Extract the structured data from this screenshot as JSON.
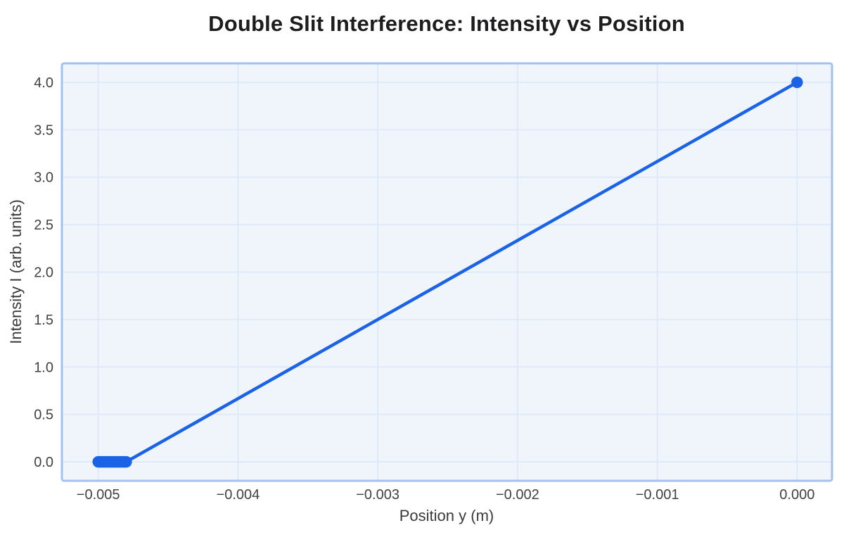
{
  "chart_data": {
    "type": "line",
    "title": "Double Slit Interference: Intensity vs Position",
    "xlabel": "Position y (m)",
    "ylabel": "Intensity I (arb. units)",
    "xlim": [
      -0.00526,
      0.00025
    ],
    "ylim": [
      -0.2,
      4.2
    ],
    "grid": true,
    "legend": "none",
    "xticks": {
      "values": [
        -0.005,
        -0.004,
        -0.003,
        -0.002,
        -0.001,
        0.0
      ],
      "labels": [
        "−0.005",
        "−0.004",
        "−0.003",
        "−0.002",
        "−0.001",
        "0.000"
      ]
    },
    "yticks": {
      "values": [
        0.0,
        0.5,
        1.0,
        1.5,
        2.0,
        2.5,
        3.0,
        3.5,
        4.0
      ],
      "labels": [
        "0.0",
        "0.5",
        "1.0",
        "1.5",
        "2.0",
        "2.5",
        "3.0",
        "3.5",
        "4.0"
      ]
    },
    "series": [
      {
        "name": "intensity",
        "x": [
          -0.005,
          -0.00499,
          -0.00498,
          -0.00497,
          -0.00496,
          -0.00495,
          -0.00494,
          -0.00493,
          -0.00492,
          -0.00491,
          -0.0049,
          -0.00489,
          -0.00488,
          -0.00487,
          -0.00486,
          -0.00485,
          -0.00484,
          -0.00483,
          -0.00482,
          -0.00481,
          -0.0048,
          0.0
        ],
        "y": [
          0.0,
          0.0,
          0.0,
          0.0,
          0.0,
          0.0,
          0.0,
          0.0,
          0.0,
          0.0,
          0.0,
          0.0,
          0.0,
          0.0,
          0.0,
          0.0,
          0.0,
          0.0,
          0.0,
          0.0,
          0.0,
          4.0
        ],
        "marker": "circle"
      }
    ],
    "colors": {
      "line": "#1b63e6",
      "marker": "#1b63e6",
      "plot_bg": "#f0f4fb",
      "grid": "#dde8f8",
      "border": "#a5c0ee",
      "title_text": "#1d1d1f",
      "label_text": "#3a3a3c",
      "tick_text": "#414144",
      "figure_bg": "#ffffff"
    }
  }
}
